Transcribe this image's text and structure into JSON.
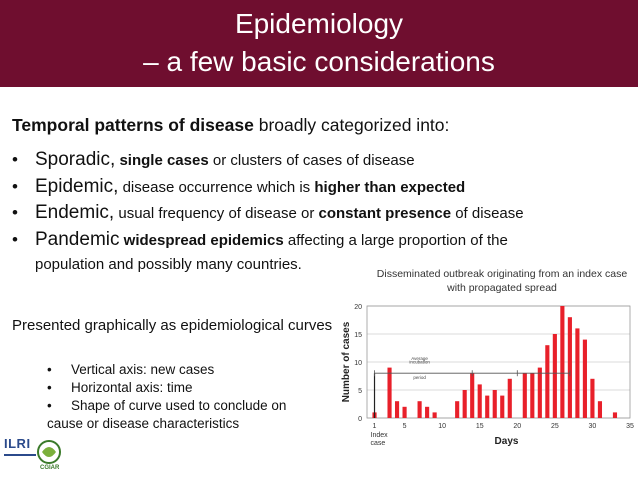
{
  "slide": {
    "title_line1": "Epidemiology",
    "title_line2": "– a few basic considerations",
    "intro_bold": "Temporal patterns of disease",
    "intro_rest": " broadly categorized into:",
    "bullet_symbol": "•",
    "bullets": [
      {
        "term": "Sporadic,",
        "pre": " ",
        "bold": "single cases",
        "post": " or clusters of cases of disease"
      },
      {
        "term": "Epidemic,",
        "pre": " disease occurrence which is ",
        "bold": "higher than expected",
        "post": ""
      },
      {
        "term": "Endemic,",
        "pre": " usual frequency of disease or ",
        "bold": "constant presence",
        "post": " of disease"
      },
      {
        "term": "Pandemic",
        "pre": " ",
        "bold": "widespread epidemics",
        "post": " affecting a large proportion of the"
      }
    ],
    "pandemic_continuation": "population and possibly many countries.",
    "presented_text": "Presented graphically as epidemiological curves",
    "sub_items": [
      "Vertical axis: new cases",
      "Horizontal axis: time",
      "Shape of curve used to conclude on",
      "cause or disease characteristics"
    ],
    "logo_ilri": "ILRI",
    "logo_cgiar": "CGIAR",
    "brand_color": "#6f0e2f"
  },
  "chart_data": {
    "type": "bar",
    "title": "Disseminated outbreak originating from an index case with propagated spread",
    "title_line1": "Disseminated outbreak originating from an index case",
    "title_line2": "with propagated spread",
    "xlabel": "Days",
    "ylabel": "Number of cases",
    "xlim": [
      0,
      35
    ],
    "ylim": [
      0,
      20
    ],
    "x_ticks": [
      "1",
      "5",
      "10",
      "15",
      "20",
      "25",
      "30",
      "35"
    ],
    "y_ticks": [
      "0",
      "5",
      "10",
      "15",
      "20"
    ],
    "bar_color": "#e8202a",
    "days": [
      1,
      3,
      4,
      5,
      7,
      8,
      9,
      12,
      13,
      14,
      15,
      16,
      17,
      18,
      19,
      21,
      22,
      23,
      24,
      25,
      26,
      27,
      28,
      29,
      30,
      31,
      33
    ],
    "values": [
      1,
      9,
      3,
      2,
      3,
      2,
      1,
      3,
      5,
      8,
      6,
      4,
      5,
      4,
      7,
      8,
      8,
      9,
      13,
      15,
      20,
      18,
      16,
      14,
      7,
      3,
      1
    ],
    "annotations": {
      "incubation_label_line1": "Average",
      "incubation_label_line2": "incubation",
      "incubation_label_line3": "period",
      "index_label_line1": "Index",
      "index_label_line2": "case"
    }
  }
}
